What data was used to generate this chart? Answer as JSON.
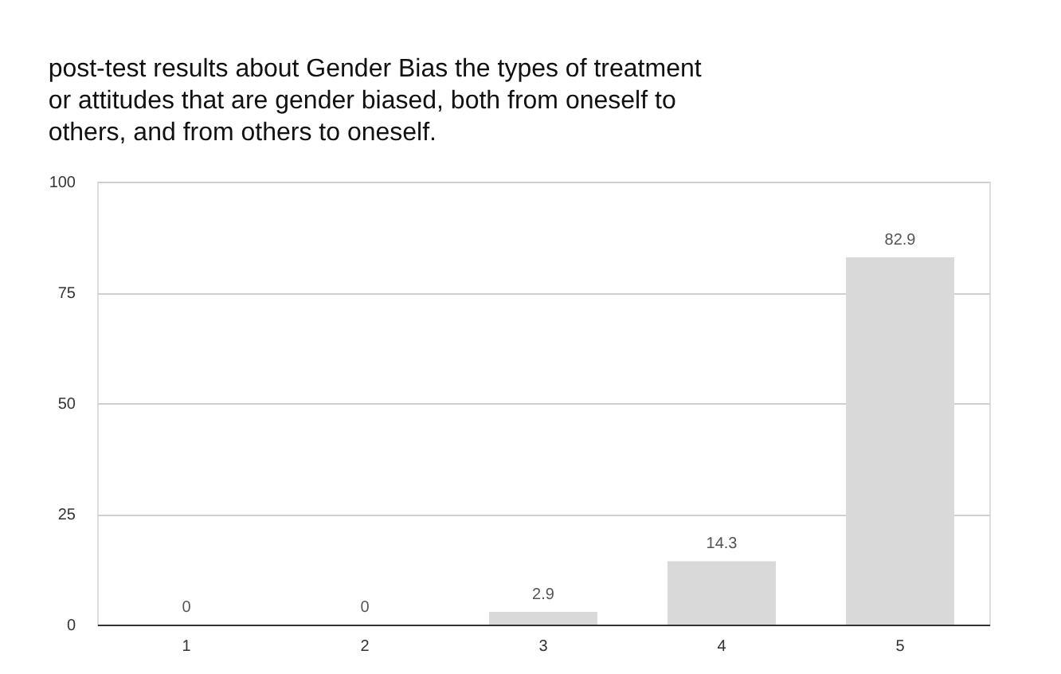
{
  "chart_data": {
    "type": "bar",
    "title": "post-test results about  Gender Bias the types of treatment or attitudes that are gender biased, both from oneself to others, and from others to oneself.",
    "categories": [
      "1",
      "2",
      "3",
      "4",
      "5"
    ],
    "values": [
      0,
      0,
      2.9,
      14.3,
      82.9
    ],
    "color": "#d9d9d9",
    "ylim": [
      0,
      100
    ],
    "yticks": [
      0,
      25,
      50,
      75,
      100
    ],
    "grid": "y",
    "data_labels": true
  }
}
